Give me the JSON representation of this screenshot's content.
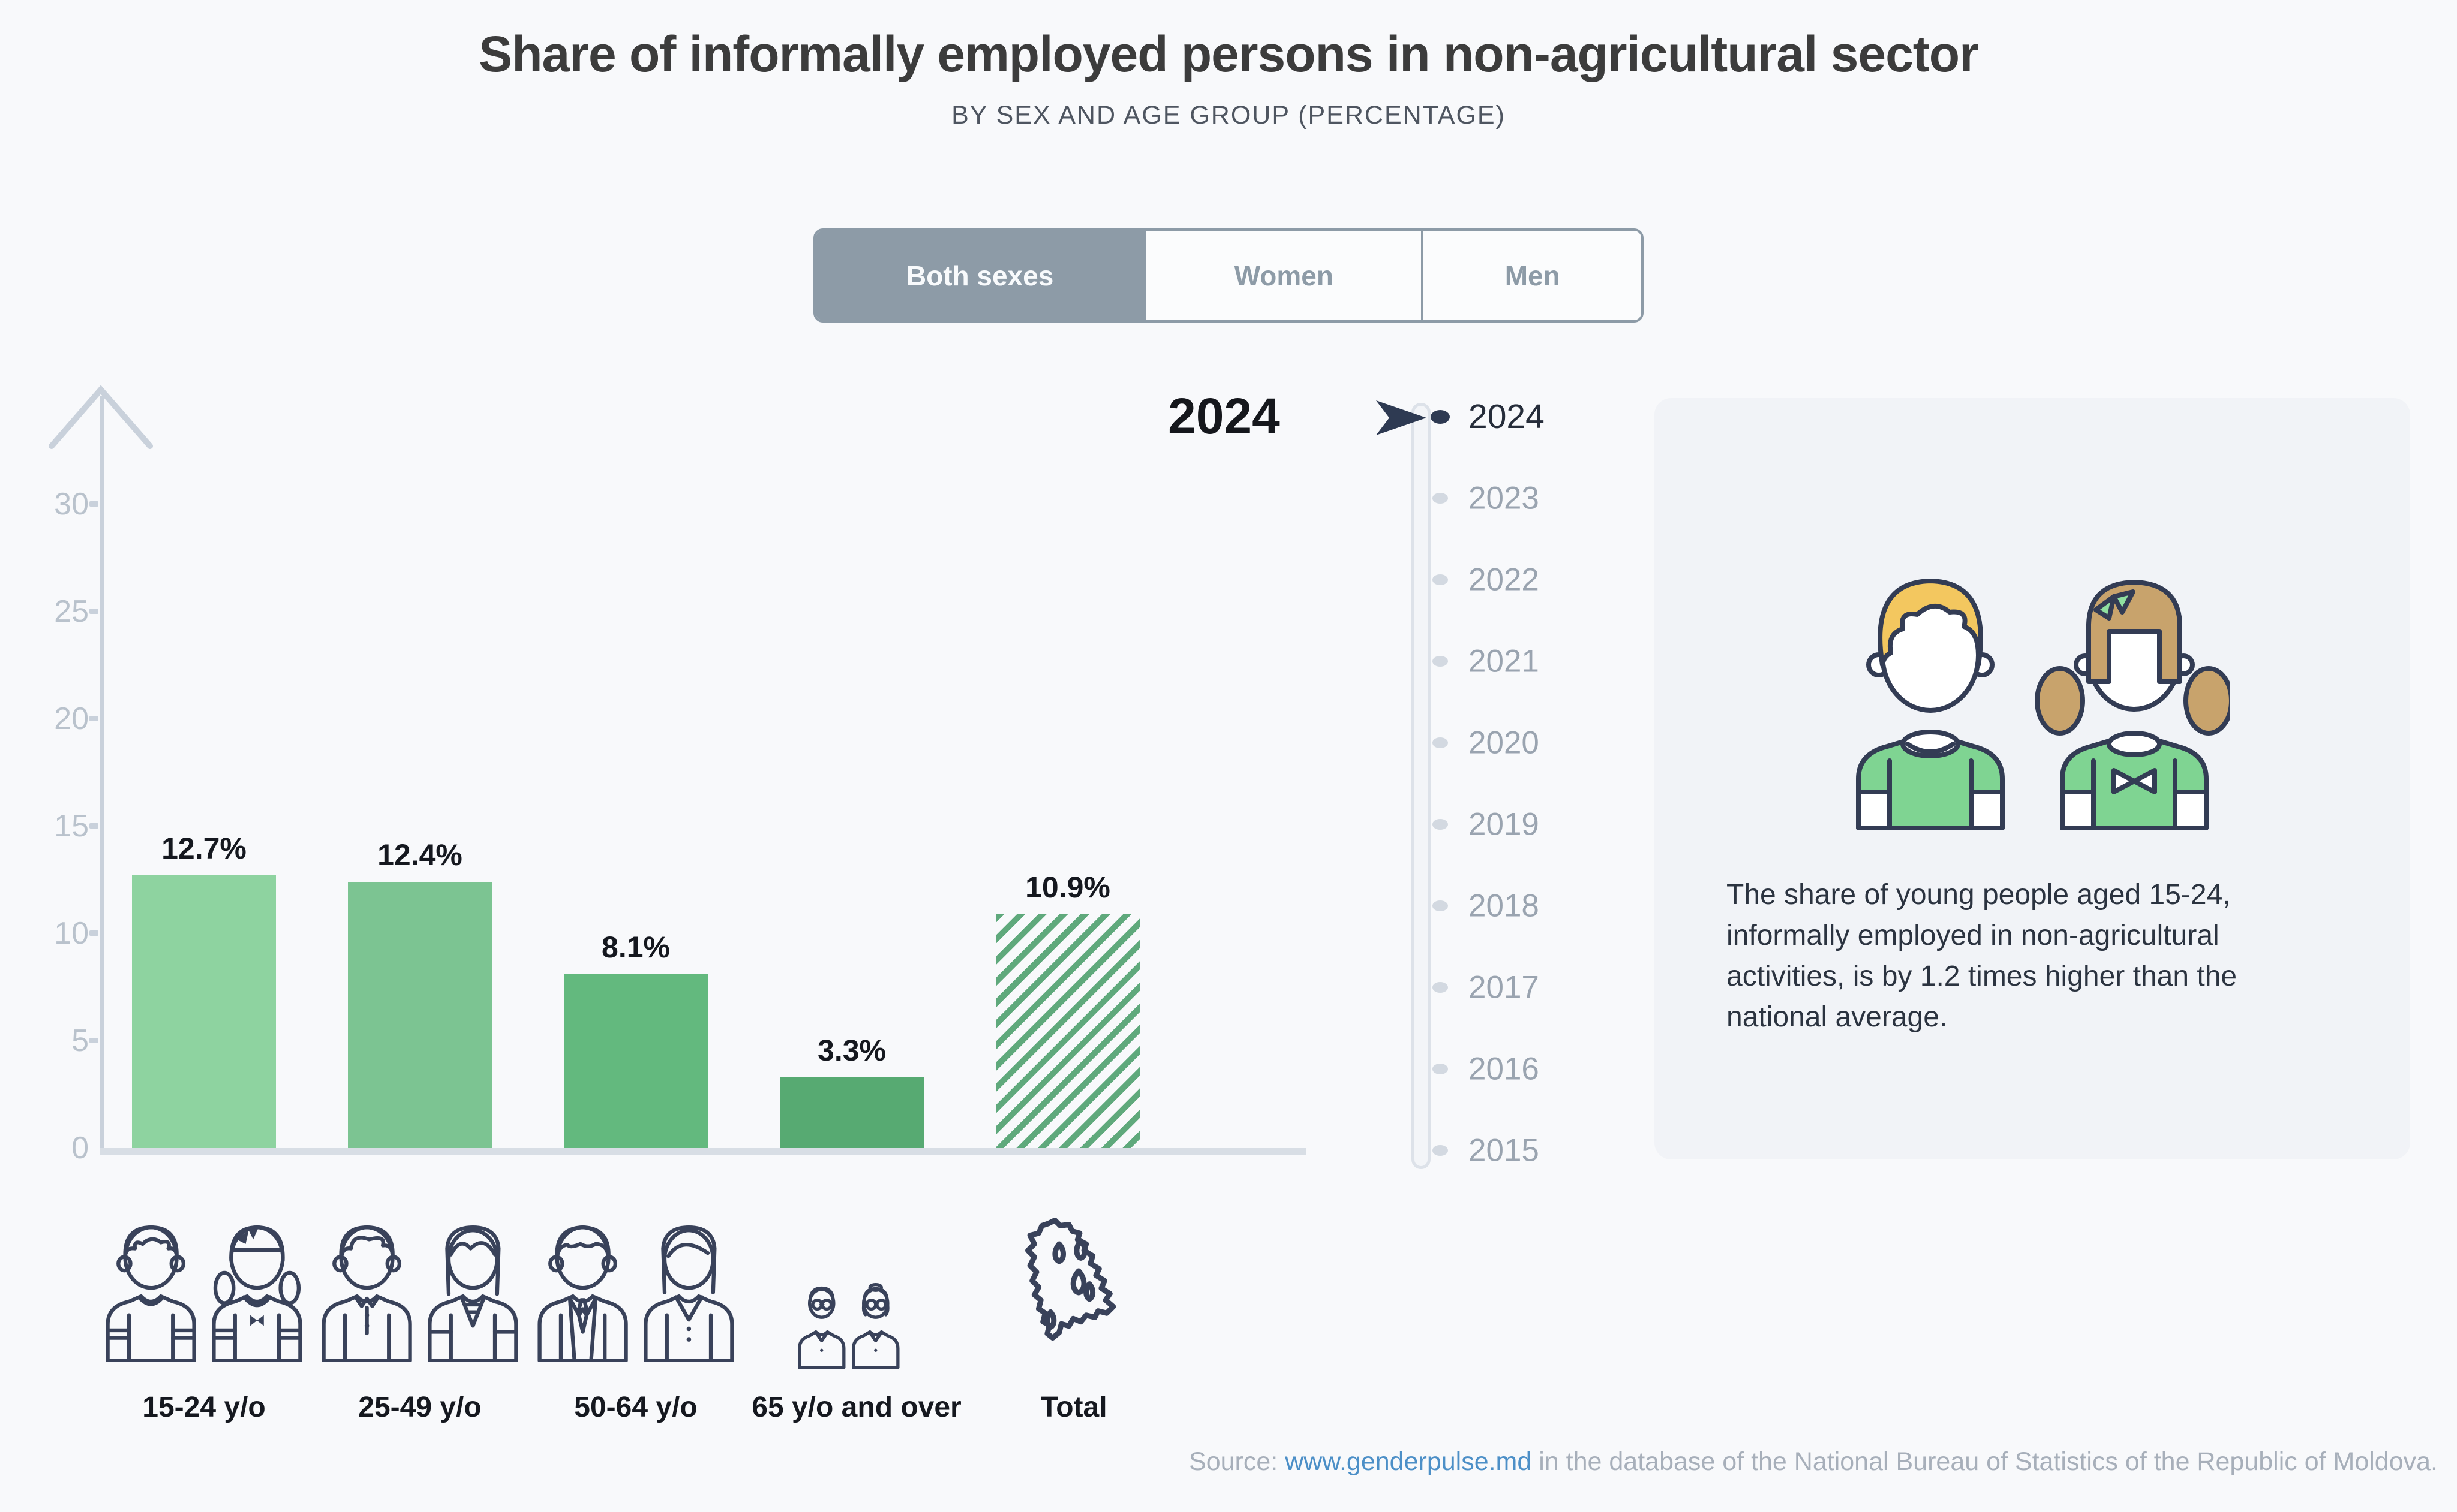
{
  "header": {
    "title": "Share of informally employed persons in non-agricultural sector",
    "subtitle": "BY SEX AND AGE GROUP (PERCENTAGE)"
  },
  "tabs": {
    "items": [
      {
        "label": "Both sexes",
        "selected": true
      },
      {
        "label": "Women",
        "selected": false
      },
      {
        "label": "Men",
        "selected": false
      }
    ]
  },
  "chart": {
    "year_label": "2024",
    "bars": [
      {
        "name": "bar-15-24",
        "category": "15-24 y/o",
        "value": 12.7,
        "label": "12.7%",
        "color": "#8ed3a0",
        "hatched": false,
        "icon": "teen-couple-icon"
      },
      {
        "name": "bar-25-49",
        "category": "25-49 y/o",
        "value": 12.4,
        "label": "12.4%",
        "color": "#7cc492",
        "hatched": false,
        "icon": "adult-couple-icon"
      },
      {
        "name": "bar-50-64",
        "category": "50-64 y/o",
        "value": 8.1,
        "label": "8.1%",
        "color": "#63b97e",
        "hatched": false,
        "icon": "senior-couple-icon"
      },
      {
        "name": "bar-65-over",
        "category": "65 y/o and over",
        "value": 3.3,
        "label": "3.3%",
        "color": "#57aa72",
        "hatched": false,
        "icon": "elderly-couple-icon"
      },
      {
        "name": "bar-total",
        "category": "Total",
        "value": 10.9,
        "label": "10.9%",
        "color": "#5fa97c",
        "hatched": true,
        "icon": "moldova-map-icon"
      }
    ],
    "yticks": [
      0,
      5,
      10,
      15,
      20,
      25,
      30
    ]
  },
  "chart_data": {
    "type": "bar",
    "title": "Share of informally employed persons in non-agricultural sector",
    "subtitle": "BY SEX AND AGE GROUP (PERCENTAGE)",
    "year": "2024",
    "selected_series": "Both sexes",
    "categories": [
      "15-24 y/o",
      "25-49 y/o",
      "50-64 y/o",
      "65 y/o and over",
      "Total"
    ],
    "values": [
      12.7,
      12.4,
      8.1,
      3.3,
      10.9
    ],
    "data_labels": [
      "12.7%",
      "12.4%",
      "8.1%",
      "3.3%",
      "10.9%"
    ],
    "unit": "percent",
    "xlabel": "",
    "ylabel": "",
    "ylim": [
      0,
      30
    ],
    "yticks": [
      0,
      5,
      10,
      15,
      20,
      25,
      30
    ],
    "grid": false,
    "legend": "none",
    "bar_colors": [
      "#8ed3a0",
      "#7cc492",
      "#63b97e",
      "#57aa72",
      "#5fa97c"
    ],
    "total_bar_style": "diagonal-hatched"
  },
  "timeline": {
    "years": [
      "2024",
      "2023",
      "2022",
      "2021",
      "2020",
      "2019",
      "2018",
      "2017",
      "2016",
      "2015"
    ],
    "selected": "2024"
  },
  "info_card": {
    "text": "The share of young people aged 15-24, informally employed in non-agricultural activities, is by 1.2 times higher than the national average."
  },
  "source": {
    "prefix": "Source: ",
    "link": "www.genderpulse.md",
    "suffix": " in the database of the National Bureau of Statistics of the Republic of Moldova."
  },
  "colors": {
    "accent_tab": "#8d9ba7",
    "axis": "#c9d1db",
    "baseline": "#d8dee5",
    "timeline_dot": "#d3d9e1",
    "timeline_active": "#2e3a52",
    "card_bg": "#f1f3f7",
    "outline_navy": "#39425a",
    "boy_hair": "#f3c75f",
    "girl_hair": "#c8a36c",
    "shirt_green": "#7fd492",
    "bow_green": "#8fe0a0",
    "link_blue": "#4c8fc7",
    "source_gray": "#a7afba"
  }
}
